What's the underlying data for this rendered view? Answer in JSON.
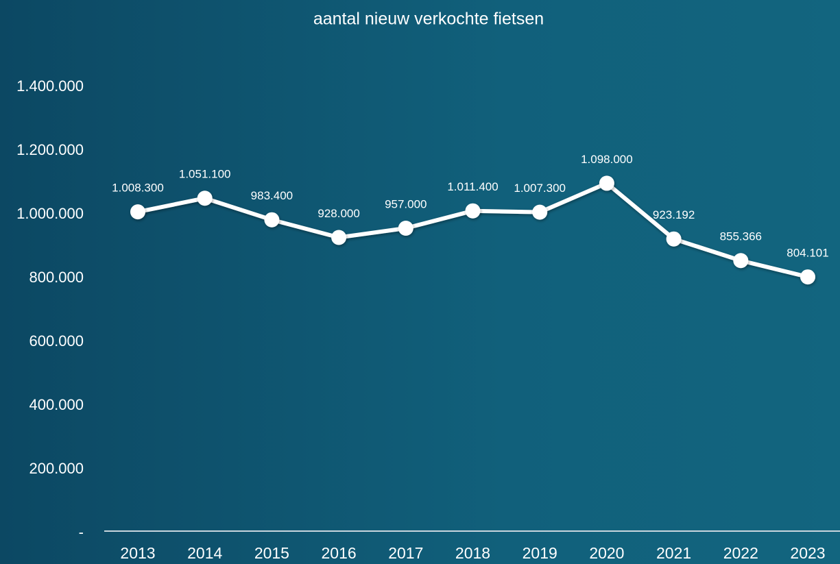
{
  "chart_data": {
    "type": "line",
    "title": "aantal nieuw verkochte fietsen",
    "categories": [
      "2013",
      "2014",
      "2015",
      "2016",
      "2017",
      "2018",
      "2019",
      "2020",
      "2021",
      "2022",
      "2023"
    ],
    "values": [
      1008300,
      1051100,
      983400,
      928000,
      957000,
      1011400,
      1007300,
      1098000,
      923192,
      855366,
      804101
    ],
    "value_labels": [
      "1.008.300",
      "1.051.100",
      "983.400",
      "928.000",
      "957.000",
      "1.011.400",
      "1.007.300",
      "1.098.000",
      "923.192",
      "855.366",
      "804.101"
    ],
    "color": "#ffffff",
    "ylim": [
      0,
      1400000
    ],
    "yticks": [
      {
        "value": 0,
        "label": "-"
      },
      {
        "value": 200000,
        "label": "200.000"
      },
      {
        "value": 400000,
        "label": "400.000"
      },
      {
        "value": 600000,
        "label": "600.000"
      },
      {
        "value": 800000,
        "label": "800.000"
      },
      {
        "value": 1000000,
        "label": "1.000.000"
      },
      {
        "value": 1200000,
        "label": "1.200.000"
      },
      {
        "value": 1400000,
        "label": "1.400.000"
      }
    ],
    "grid": false
  }
}
